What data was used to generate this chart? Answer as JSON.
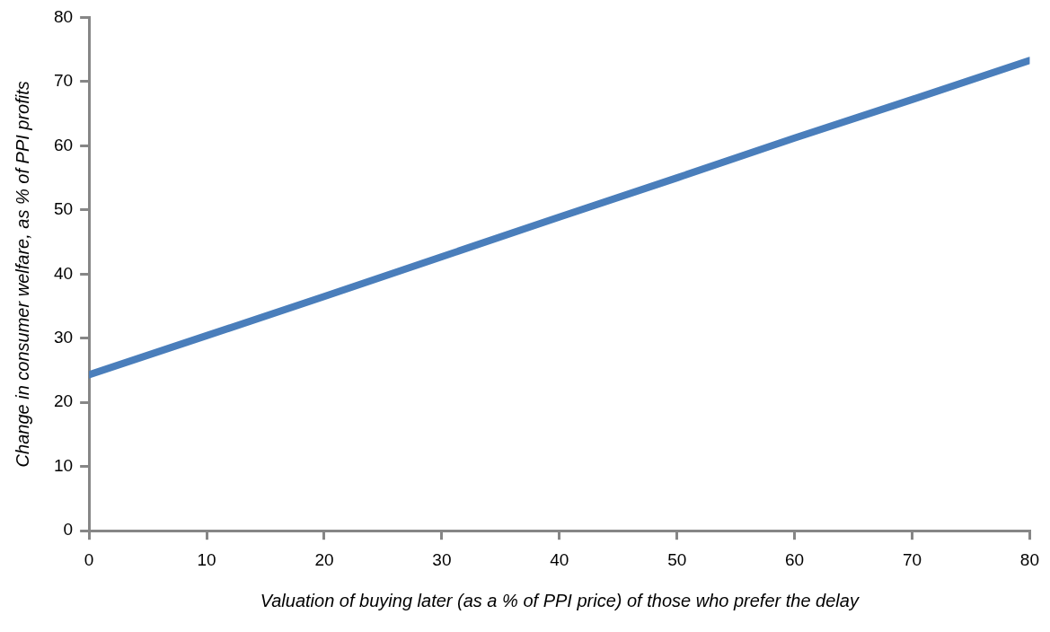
{
  "chart_data": {
    "type": "line",
    "xlabel": "Valuation of buying later (as a % of PPI price) of those who prefer the delay",
    "ylabel": "Change in consumer welfare, as % of PPI profits",
    "x": [
      0,
      10,
      20,
      30,
      40,
      50,
      60,
      70,
      80
    ],
    "series": [
      {
        "color": "#4a7ebb",
        "values": [
          24.3,
          30.4,
          36.5,
          42.7,
          48.9,
          55.0,
          61.2,
          67.2,
          73.3
        ]
      }
    ],
    "xlim": [
      0,
      80
    ],
    "xticks": [
      0,
      10,
      20,
      30,
      40,
      50,
      60,
      70,
      80
    ],
    "ylim": [
      0,
      80
    ],
    "yticks": [
      0,
      10,
      20,
      30,
      40,
      50,
      60,
      70,
      80
    ],
    "grid": false,
    "legend": false,
    "marker": "none",
    "line_style": "solid"
  }
}
